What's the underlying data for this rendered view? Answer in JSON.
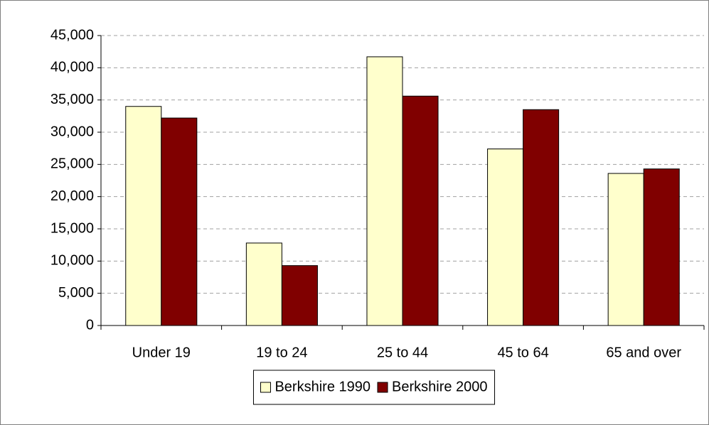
{
  "chart_data": {
    "type": "bar",
    "categories": [
      "Under 19",
      "19 to 24",
      "25 to 44",
      "45 to 64",
      "65 and over"
    ],
    "series": [
      {
        "name": "Berkshire 1990",
        "color": "#ffffcc",
        "values": [
          34000,
          12800,
          41700,
          27400,
          23600
        ]
      },
      {
        "name": "Berkshire 2000",
        "color": "#800000",
        "values": [
          32200,
          9300,
          35600,
          33500,
          24300
        ]
      }
    ],
    "ylim": [
      0,
      45000
    ],
    "yticks": [
      0,
      {
        "value": 5000,
        "label": "5,000"
      },
      {
        "value": 10000,
        "label": "10,000"
      },
      {
        "value": 15000,
        "label": "15,000"
      },
      {
        "value": 20000,
        "label": "20,000"
      },
      {
        "value": 25000,
        "label": "25,000"
      },
      {
        "value": 30000,
        "label": "30,000"
      },
      {
        "value": 35000,
        "label": "35,000"
      },
      {
        "value": 40000,
        "label": "40,000"
      },
      {
        "value": 45000,
        "label": "45,000"
      }
    ],
    "grid": true,
    "legend": "bottom"
  }
}
